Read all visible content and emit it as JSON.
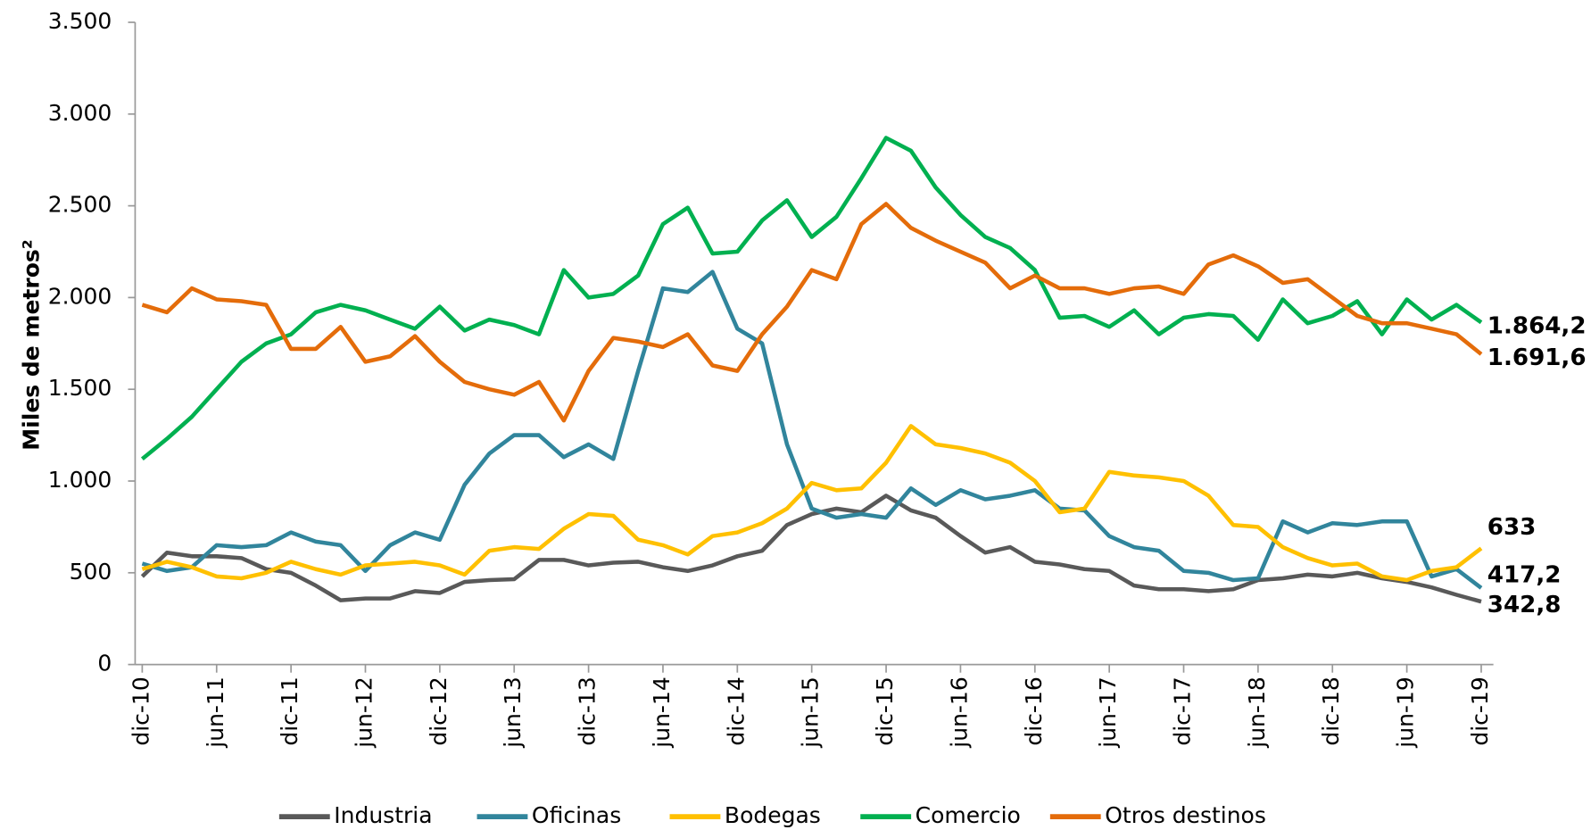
{
  "chart_data": {
    "type": "line",
    "y_label": "Miles de metros²",
    "categories": [
      "dic-10",
      null,
      null,
      "jun-11",
      null,
      null,
      "dic-11",
      null,
      null,
      "jun-12",
      null,
      null,
      "dic-12",
      null,
      null,
      "jun-13",
      null,
      null,
      "dic-13",
      null,
      null,
      "jun-14",
      null,
      null,
      "dic-14",
      null,
      null,
      "jun-15",
      null,
      null,
      "dic-15",
      null,
      null,
      "jun-16",
      null,
      null,
      "dic-16",
      null,
      null,
      "jun-17",
      null,
      null,
      "dic-17",
      null,
      null,
      "jun-18",
      null,
      null,
      "dic-18",
      null,
      null,
      "jun-19",
      null,
      null,
      "dic-19"
    ],
    "ylim": [
      0,
      3500
    ],
    "yticks": [
      0,
      500,
      {
        "value": 1000,
        "label": "1.000"
      },
      {
        "value": 1500,
        "label": "1.500"
      },
      {
        "value": 2000,
        "label": "2.000"
      },
      {
        "value": 2500,
        "label": "2.500"
      },
      {
        "value": 3000,
        "label": "3.000"
      },
      {
        "value": 3500,
        "label": "3.500"
      }
    ],
    "grid": false,
    "legend": "bottom",
    "series": [
      {
        "name": "Industria",
        "color": "#595959",
        "values": [
          480,
          610,
          590,
          590,
          580,
          520,
          500,
          430,
          350,
          360,
          360,
          400,
          390,
          450,
          460,
          465,
          570,
          570,
          540,
          555,
          560,
          530,
          510,
          540,
          590,
          620,
          760,
          820,
          850,
          830,
          920,
          840,
          800,
          700,
          610,
          640,
          560,
          545,
          520,
          510,
          430,
          410,
          410,
          400,
          410,
          460,
          470,
          490,
          480,
          500,
          470,
          450,
          420,
          380,
          342.8
        ],
        "value_labels": [
          null,
          null,
          null,
          null,
          null,
          null,
          null,
          null,
          null,
          null,
          null,
          null,
          null,
          null,
          null,
          null,
          null,
          null,
          null,
          null,
          null,
          null,
          null,
          null,
          null,
          null,
          null,
          null,
          null,
          null,
          null,
          null,
          null,
          null,
          null,
          null,
          null,
          null,
          null,
          null,
          null,
          null,
          null,
          null,
          null,
          null,
          null,
          null,
          null,
          null,
          null,
          null,
          null,
          null,
          "342,8"
        ]
      },
      {
        "name": "Oficinas",
        "color": "#31859c",
        "values": [
          550,
          510,
          530,
          650,
          640,
          650,
          720,
          670,
          650,
          510,
          650,
          720,
          680,
          980,
          1150,
          1250,
          1250,
          1130,
          1200,
          1120,
          1600,
          2050,
          2030,
          2140,
          1830,
          1750,
          1200,
          850,
          800,
          820,
          800,
          960,
          870,
          950,
          900,
          920,
          950,
          850,
          840,
          700,
          640,
          620,
          510,
          500,
          460,
          470,
          780,
          720,
          770,
          760,
          780,
          780,
          480,
          520,
          417.2
        ],
        "value_labels": [
          null,
          null,
          null,
          null,
          null,
          null,
          null,
          null,
          null,
          null,
          null,
          null,
          null,
          null,
          null,
          null,
          null,
          null,
          null,
          null,
          null,
          null,
          null,
          null,
          null,
          null,
          null,
          null,
          null,
          null,
          null,
          null,
          null,
          null,
          null,
          null,
          null,
          null,
          null,
          null,
          null,
          null,
          null,
          null,
          null,
          null,
          null,
          null,
          null,
          null,
          null,
          null,
          null,
          null,
          "417,2"
        ]
      },
      {
        "name": "Bodegas",
        "color": "#ffc000",
        "values": [
          520,
          560,
          530,
          480,
          470,
          500,
          560,
          520,
          490,
          540,
          550,
          560,
          540,
          490,
          620,
          640,
          630,
          740,
          820,
          810,
          680,
          650,
          600,
          700,
          720,
          770,
          850,
          990,
          950,
          960,
          1100,
          1300,
          1200,
          1180,
          1150,
          1100,
          1000,
          830,
          850,
          1050,
          1030,
          1020,
          1000,
          920,
          760,
          750,
          640,
          580,
          540,
          550,
          480,
          460,
          510,
          530,
          633
        ],
        "value_labels": [
          null,
          null,
          null,
          null,
          null,
          null,
          null,
          null,
          null,
          null,
          null,
          null,
          null,
          null,
          null,
          null,
          null,
          null,
          null,
          null,
          null,
          null,
          null,
          null,
          null,
          null,
          null,
          null,
          null,
          null,
          null,
          null,
          null,
          null,
          null,
          null,
          null,
          null,
          null,
          null,
          null,
          null,
          null,
          null,
          null,
          null,
          null,
          null,
          null,
          null,
          null,
          null,
          null,
          null,
          "633"
        ]
      },
      {
        "name": "Comercio",
        "color": "#00b050",
        "values": [
          1120,
          1230,
          1350,
          1500,
          1650,
          1750,
          1800,
          1920,
          1960,
          1930,
          1880,
          1830,
          1950,
          1820,
          1880,
          1850,
          1800,
          2150,
          2000,
          2020,
          2120,
          2400,
          2490,
          2240,
          2250,
          2420,
          2530,
          2330,
          2440,
          2650,
          2870,
          2800,
          2600,
          2450,
          2330,
          2270,
          2150,
          1890,
          1900,
          1840,
          1930,
          1800,
          1890,
          1910,
          1900,
          1770,
          1990,
          1860,
          1900,
          1980,
          1800,
          1990,
          1880,
          1960,
          1864.2
        ],
        "value_labels": [
          null,
          null,
          null,
          null,
          null,
          null,
          null,
          null,
          null,
          null,
          null,
          null,
          null,
          null,
          null,
          null,
          null,
          null,
          null,
          null,
          null,
          null,
          null,
          null,
          null,
          null,
          null,
          null,
          null,
          null,
          null,
          null,
          null,
          null,
          null,
          null,
          null,
          null,
          null,
          null,
          null,
          null,
          null,
          null,
          null,
          null,
          null,
          null,
          null,
          null,
          null,
          null,
          null,
          null,
          "1.864,2"
        ]
      },
      {
        "name": "Otros destinos",
        "color": "#e46c0a",
        "values": [
          1960,
          1920,
          2050,
          1990,
          1980,
          1960,
          1720,
          1720,
          1840,
          1650,
          1680,
          1790,
          1650,
          1540,
          1500,
          1470,
          1540,
          1330,
          1600,
          1780,
          1760,
          1730,
          1800,
          1630,
          1600,
          1800,
          1950,
          2150,
          2100,
          2400,
          2510,
          2380,
          2310,
          2250,
          2190,
          2050,
          2120,
          2050,
          2050,
          2020,
          2050,
          2060,
          2020,
          2180,
          2230,
          2170,
          2080,
          2100,
          2000,
          1900,
          1860,
          1860,
          1830,
          1800,
          1691.6
        ],
        "value_labels": [
          null,
          null,
          null,
          null,
          null,
          null,
          null,
          null,
          null,
          null,
          null,
          null,
          null,
          null,
          null,
          null,
          null,
          null,
          null,
          null,
          null,
          null,
          null,
          null,
          null,
          null,
          null,
          null,
          null,
          null,
          null,
          null,
          null,
          null,
          null,
          null,
          null,
          null,
          null,
          null,
          null,
          null,
          null,
          null,
          null,
          null,
          null,
          null,
          null,
          null,
          null,
          null,
          null,
          null,
          "1.691,6"
        ]
      }
    ]
  }
}
